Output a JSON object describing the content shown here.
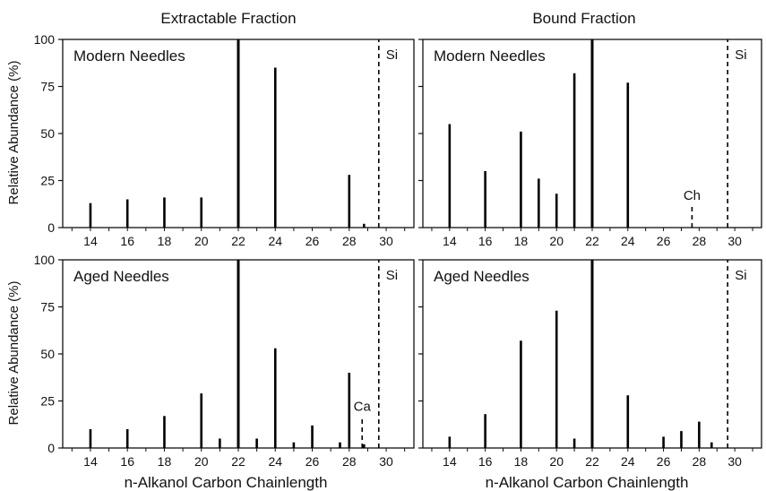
{
  "column_titles": [
    "Extractable Fraction",
    "Bound Fraction"
  ],
  "ylabel": "Relative Abundance (%)",
  "xlabel": "n-Alkanol Carbon Chainlength",
  "chart_data": [
    {
      "type": "bar",
      "title": "Modern Needles",
      "column": "Extractable Fraction",
      "xlim": [
        12.5,
        31.5
      ],
      "ylim": [
        0,
        100
      ],
      "xticks": [
        14,
        16,
        18,
        20,
        22,
        24,
        26,
        28,
        30
      ],
      "yticks": [
        0,
        25,
        50,
        75,
        100
      ],
      "x": [
        14,
        16,
        18,
        20,
        22,
        24,
        28,
        28.8
      ],
      "values": [
        13,
        15,
        16,
        16,
        100,
        85,
        28,
        2
      ],
      "markers": [
        {
          "x": 29.6,
          "label": "Si",
          "style": "dashed",
          "from": 0,
          "to": 100
        }
      ]
    },
    {
      "type": "bar",
      "title": "Modern Needles",
      "column": "Bound Fraction",
      "xlim": [
        12.5,
        31.5
      ],
      "ylim": [
        0,
        100
      ],
      "xticks": [
        14,
        16,
        18,
        20,
        22,
        24,
        26,
        28,
        30
      ],
      "yticks": [
        0,
        25,
        50,
        75,
        100
      ],
      "x": [
        14,
        16,
        18,
        19,
        20,
        21,
        22,
        24
      ],
      "values": [
        55,
        30,
        51,
        26,
        18,
        82,
        100,
        77
      ],
      "markers": [
        {
          "x": 29.6,
          "label": "Si",
          "style": "dashed",
          "from": 0,
          "to": 100
        },
        {
          "x": 27.6,
          "label": "Ch",
          "style": "dashed",
          "from": 0,
          "to": 11
        }
      ]
    },
    {
      "type": "bar",
      "title": "Aged Needles",
      "column": "Extractable Fraction",
      "xlim": [
        12.5,
        31.5
      ],
      "ylim": [
        0,
        100
      ],
      "xticks": [
        14,
        16,
        18,
        20,
        22,
        24,
        26,
        28,
        30
      ],
      "yticks": [
        0,
        25,
        50,
        75,
        100
      ],
      "x": [
        14,
        16,
        18,
        20,
        21,
        22,
        23,
        24,
        25,
        26,
        27.5,
        28,
        28.8
      ],
      "values": [
        10,
        10,
        17,
        29,
        5,
        100,
        5,
        53,
        3,
        12,
        3,
        40,
        2
      ],
      "markers": [
        {
          "x": 29.6,
          "label": "Si",
          "style": "dashed",
          "from": 0,
          "to": 100
        },
        {
          "x": 28.7,
          "label": "Ca",
          "style": "dashed",
          "from": 0,
          "to": 16
        }
      ]
    },
    {
      "type": "bar",
      "title": "Aged Needles",
      "column": "Bound Fraction",
      "xlim": [
        12.5,
        31.5
      ],
      "ylim": [
        0,
        100
      ],
      "xticks": [
        14,
        16,
        18,
        20,
        22,
        24,
        26,
        28,
        30
      ],
      "yticks": [
        0,
        25,
        50,
        75,
        100
      ],
      "x": [
        14,
        16,
        18,
        20,
        21,
        22,
        24,
        26,
        27,
        28,
        28.7
      ],
      "values": [
        6,
        18,
        57,
        73,
        5,
        100,
        28,
        6,
        9,
        14,
        3
      ],
      "markers": [
        {
          "x": 29.6,
          "label": "Si",
          "style": "dashed",
          "from": 0,
          "to": 100
        }
      ]
    }
  ]
}
